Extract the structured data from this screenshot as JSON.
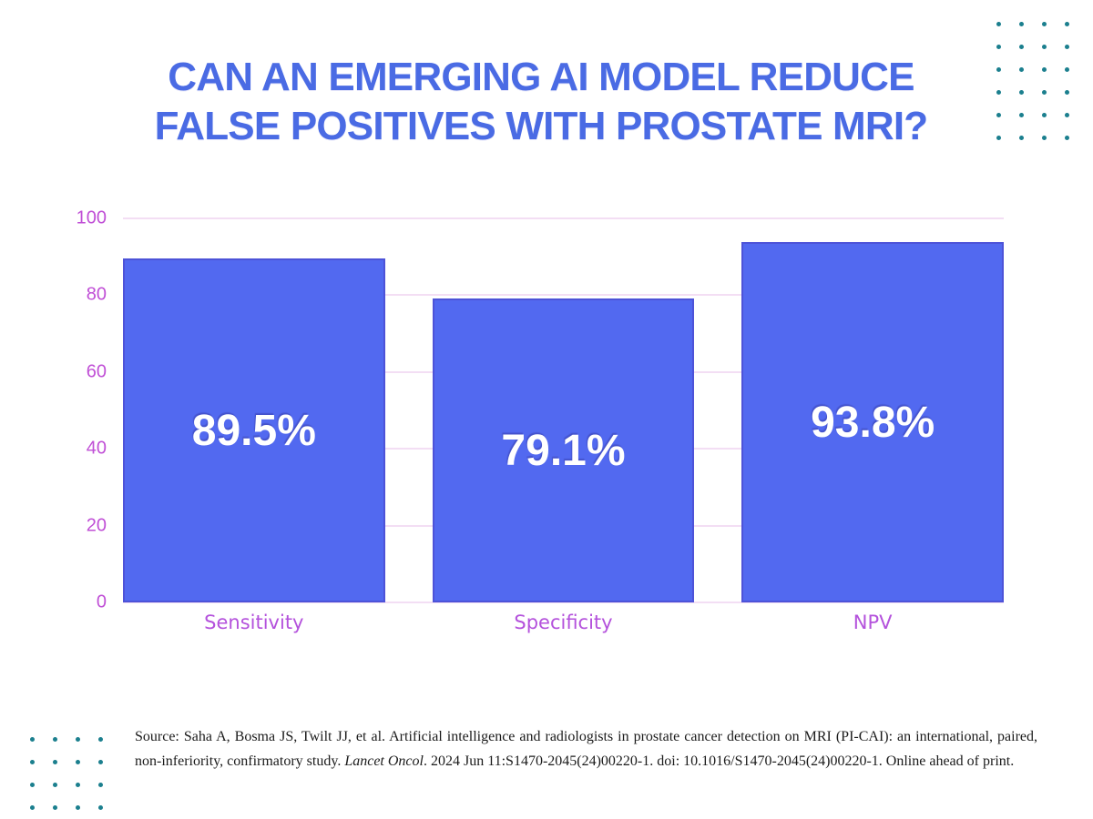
{
  "title": {
    "line1": "CAN AN EMERGING AI MODEL REDUCE",
    "line2": "FALSE POSITIVES WITH PROSTATE MRI?"
  },
  "colors": {
    "title": "#4a6be4",
    "background": "#ffffff"
  },
  "chart_data": {
    "type": "bar",
    "categories": [
      "Sensitivity",
      "Specificity",
      "NPV"
    ],
    "values": [
      89.5,
      79.1,
      93.8
    ],
    "value_labels": [
      "89.5%",
      "79.1%",
      "93.8%"
    ],
    "title": "CAN AN EMERGING AI MODEL REDUCE FALSE POSITIVES WITH PROSTATE MRI?",
    "xlabel": "",
    "ylabel": "",
    "ylim": [
      0,
      100
    ],
    "yticks": [
      0,
      20,
      40,
      60,
      80,
      100
    ],
    "grid": true,
    "legend": "none",
    "colors": {
      "bar_fill": "#5269f0",
      "bar_border": "#4d53d8",
      "tick_label": "#c04fd6",
      "category_label": "#b452dc",
      "gridline": "#f3def4",
      "value_label": "#ffffff"
    }
  },
  "source": {
    "prefix": "Source: Saha A, Bosma JS, Twilt JJ, et al. Artificial intelligence and radiologists in prostate cancer detection on MRI (PI-CAI): an international, paired, non-inferiority, confirmatory study. ",
    "journal": "Lancet Oncol",
    "suffix": ". 2024 Jun 11:S1470-2045(24)00220-1. doi: 10.1016/S1470-2045(24)00220-1. Online ahead of print."
  },
  "decorations": {
    "dot_color": "#1b7f8e",
    "top_right_grid": {
      "rows": 6,
      "cols": 4
    },
    "bottom_left_grid": {
      "rows": 4,
      "cols": 4
    }
  }
}
